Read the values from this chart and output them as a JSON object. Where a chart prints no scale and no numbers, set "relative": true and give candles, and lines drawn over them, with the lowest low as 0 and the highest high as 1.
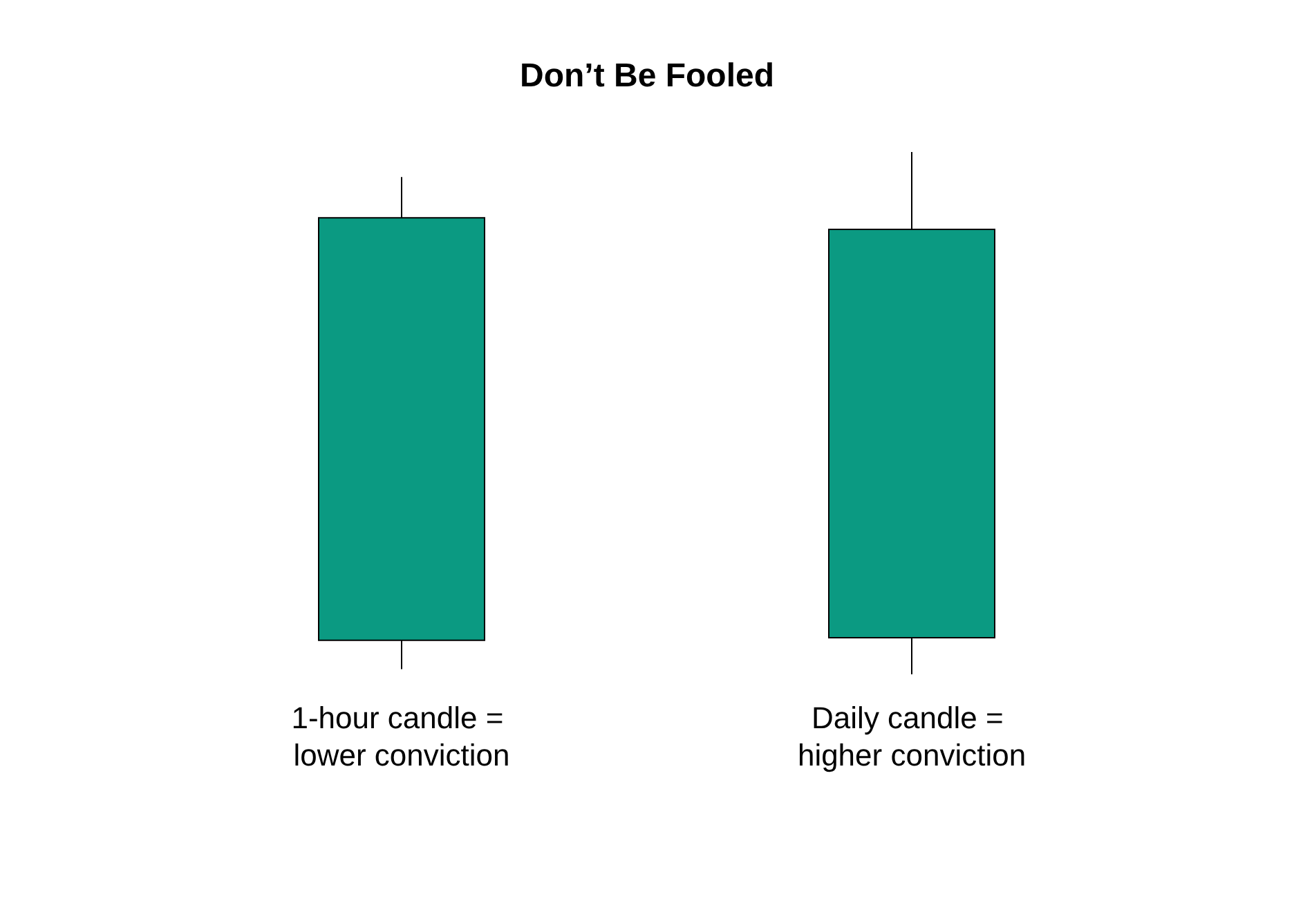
{
  "chart_data": {
    "type": "candlestick",
    "title": "Don’t Be Fooled",
    "relative": true,
    "categories": [
      "1-hour candle = lower conviction",
      "Daily candle = higher conviction"
    ],
    "ohlc": [
      [
        0.065,
        0.952,
        0.01,
        0.874
      ],
      [
        0.07,
        1,
        0,
        0.852
      ]
    ],
    "colors": [
      "#0b9a82",
      "#0b9a82"
    ]
  }
}
